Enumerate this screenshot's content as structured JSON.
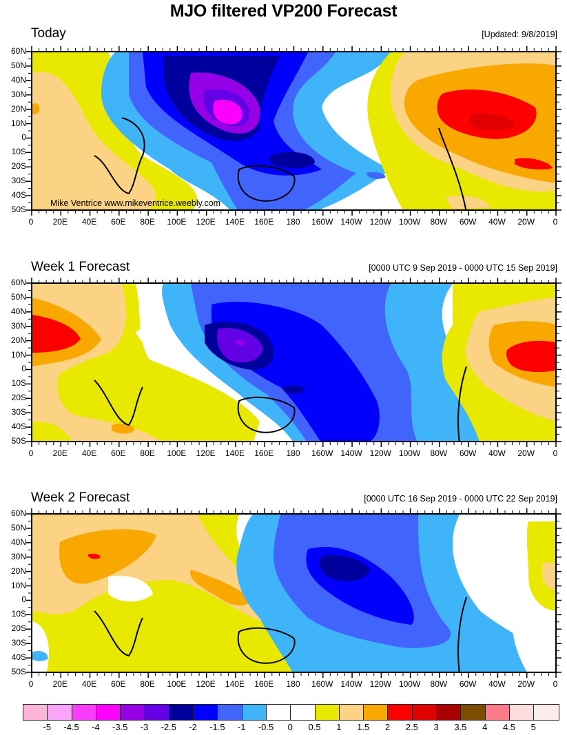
{
  "title": "MJO filtered VP200 Forecast",
  "panels": [
    {
      "id": "today",
      "title": "Today",
      "stamp": "[Updated: 9/8/2019]",
      "watermark": "Mike Ventrice www.mikeventrice.weebly.com"
    },
    {
      "id": "week1",
      "title": "Week 1 Forecast",
      "stamp": "[0000 UTC 9 Sep 2019 - 0000 UTC 15 Sep 2019]"
    },
    {
      "id": "week2",
      "title": "Week 2 Forecast",
      "stamp": "[0000 UTC 16 Sep 2019 - 0000 UTC 22 Sep 2019]"
    }
  ],
  "axes": {
    "lat_labels": [
      "60N",
      "50N",
      "40N",
      "30N",
      "20N",
      "10N",
      "0",
      "10S",
      "20S",
      "30S",
      "40S",
      "50S"
    ],
    "lon_labels": [
      "0",
      "20E",
      "40E",
      "60E",
      "80E",
      "100E",
      "120E",
      "140E",
      "160E",
      "180",
      "160W",
      "140W",
      "120W",
      "100W",
      "80W",
      "60W",
      "40W",
      "20W",
      "0"
    ]
  },
  "colorbar": {
    "colors": [
      "#fcb4d8",
      "#fca4fc",
      "#fc3cfc",
      "#fc00fc",
      "#9600e6",
      "#6400e6",
      "#00009c",
      "#0000fc",
      "#4064fc",
      "#40b4f8",
      "#ffffff",
      "#ffffff",
      "#e8e800",
      "#fcd284",
      "#f8a800",
      "#fc0000",
      "#e00000",
      "#aa0000",
      "#7c4c00",
      "#fc7c8c",
      "#fcdcdc",
      "#fcecec"
    ],
    "labels": [
      "-5",
      "-4.5",
      "-4",
      "-3.5",
      "-3",
      "-2.5",
      "-2",
      "-1.5",
      "-1",
      "-0.5",
      "0",
      "0.5",
      "1",
      "1.5",
      "2",
      "2.5",
      "3",
      "3.5",
      "4",
      "4.5",
      "5"
    ]
  },
  "chart_data": {
    "type": "heatmap",
    "title": "MJO filtered VP200 Forecast",
    "variable": "200-hPa velocity potential anomaly (MJO filtered)",
    "x_range": [
      0,
      360
    ],
    "y_range": [
      -50,
      60
    ],
    "panels": [
      {
        "name": "Today",
        "features": [
          {
            "region": "Western Pacific / Philippines",
            "lon": 128,
            "lat": 15,
            "value": -4,
            "sign": "negative"
          },
          {
            "region": "Maritime Continent / Indonesia",
            "lon": 150,
            "lat": -15,
            "value": -2.5,
            "sign": "negative"
          },
          {
            "region": "Caribbean / Tropical Atlantic",
            "lon": 295,
            "lat": 10,
            "value": 3,
            "sign": "positive"
          },
          {
            "region": "South Atlantic",
            "lon": 320,
            "lat": -22,
            "value": 2.5,
            "sign": "positive"
          },
          {
            "region": "Africa",
            "lon": 20,
            "lat": -20,
            "value": 1.5,
            "sign": "positive"
          }
        ]
      },
      {
        "name": "Week 1 Forecast",
        "features": [
          {
            "region": "Western Pacific",
            "lon": 145,
            "lat": 18,
            "value": -3,
            "sign": "negative"
          },
          {
            "region": "Central Pacific",
            "lon": 190,
            "lat": -10,
            "value": -2.5,
            "sign": "negative"
          },
          {
            "region": "North Africa",
            "lon": 10,
            "lat": 22,
            "value": 2.5,
            "sign": "positive"
          },
          {
            "region": "Tropical Atlantic",
            "lon": 325,
            "lat": 15,
            "value": 2.5,
            "sign": "positive"
          },
          {
            "region": "South Indian Ocean",
            "lon": 65,
            "lat": -38,
            "value": 2,
            "sign": "positive"
          }
        ]
      },
      {
        "name": "Week 2 Forecast",
        "features": [
          {
            "region": "Eastern Pacific",
            "lon": 240,
            "lat": 17,
            "value": -2.5,
            "sign": "negative"
          },
          {
            "region": "South America",
            "lon": 295,
            "lat": -20,
            "value": -2,
            "sign": "negative"
          },
          {
            "region": "Arabian Peninsula",
            "lon": 45,
            "lat": 23,
            "value": 2.5,
            "sign": "positive"
          },
          {
            "region": "Maritime Continent",
            "lon": 125,
            "lat": 5,
            "value": 2,
            "sign": "positive"
          },
          {
            "region": "Indian Ocean",
            "lon": 75,
            "lat": -5,
            "value": 0.5,
            "sign": "positive"
          }
        ]
      }
    ],
    "legend": {
      "levels": [
        -5,
        -4.5,
        -4,
        -3.5,
        -3,
        -2.5,
        -2,
        -1.5,
        -1,
        -0.5,
        0,
        0.5,
        1,
        1.5,
        2,
        2.5,
        3,
        3.5,
        4,
        4.5,
        5
      ],
      "placement": "bottom"
    }
  }
}
